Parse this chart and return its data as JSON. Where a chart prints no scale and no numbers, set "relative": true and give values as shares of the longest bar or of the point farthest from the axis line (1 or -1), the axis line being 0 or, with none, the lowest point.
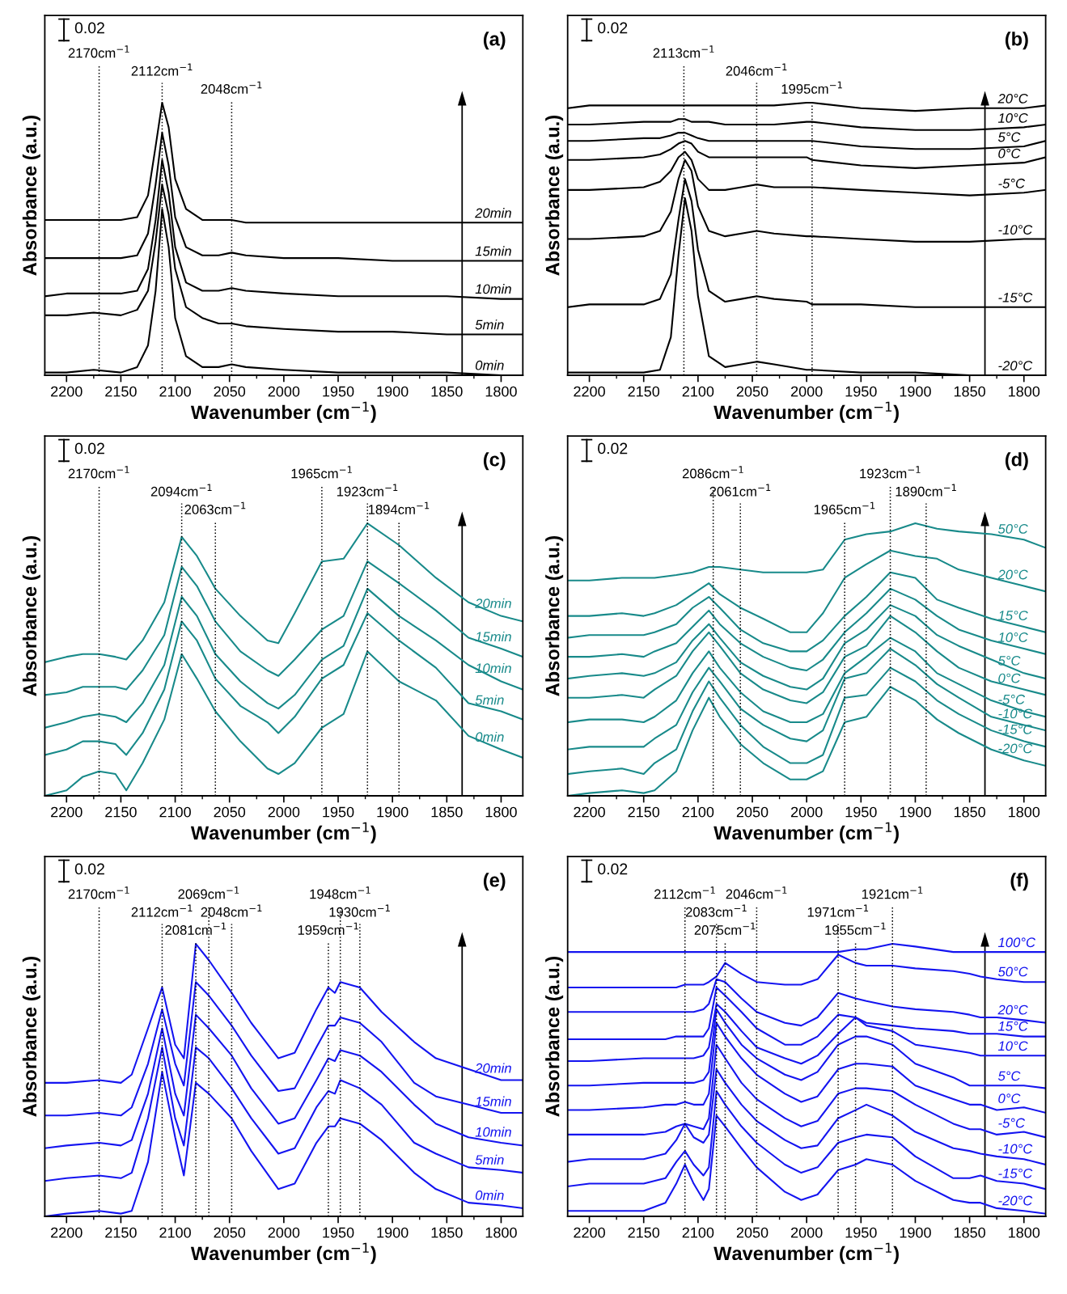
{
  "chart_data": [
    {
      "type": "line",
      "relative": true,
      "xlabel": "Wavenumber (cm$^{−1}$)",
      "ylabel": "Absorbance (a.u.)",
      "xlim": [
        2220,
        1780
      ],
      "xticks": [
        2200,
        2150,
        2100,
        2050,
        2000,
        1950,
        1900,
        1850,
        1800
      ],
      "annotations": [
        "(a)",
        "0.02"
      ],
      "x": [
        2220,
        2200,
        2175,
        2150,
        2135,
        2125,
        2118,
        2112,
        2106,
        2100,
        2090,
        2075,
        2060,
        2048,
        2035,
        2000,
        1950,
        1900,
        1850,
        1800,
        1780
      ],
      "series": [
        {
          "name": "0min",
          "color": "#000000",
          "values": [
            0.01,
            0.01,
            0.02,
            0.01,
            0.03,
            0.11,
            0.31,
            0.61,
            0.47,
            0.21,
            0.07,
            0.03,
            0.03,
            0.04,
            0.03,
            0.02,
            0.01,
            0.01,
            0.01,
            0.0,
            0.0
          ]
        },
        {
          "name": "5min",
          "color": "#000000",
          "values": [
            0.22,
            0.22,
            0.23,
            0.22,
            0.24,
            0.31,
            0.49,
            0.7,
            0.59,
            0.39,
            0.25,
            0.21,
            0.19,
            0.19,
            0.18,
            0.17,
            0.16,
            0.16,
            0.15,
            0.15,
            0.15
          ]
        },
        {
          "name": "10min",
          "color": "#000000",
          "values": [
            0.29,
            0.3,
            0.3,
            0.3,
            0.31,
            0.39,
            0.57,
            0.79,
            0.67,
            0.47,
            0.34,
            0.31,
            0.31,
            0.32,
            0.31,
            0.3,
            0.29,
            0.29,
            0.29,
            0.28,
            0.28
          ]
        },
        {
          "name": "15min",
          "color": "#000000",
          "values": [
            0.43,
            0.43,
            0.43,
            0.43,
            0.44,
            0.52,
            0.7,
            0.89,
            0.77,
            0.58,
            0.47,
            0.44,
            0.44,
            0.45,
            0.44,
            0.43,
            0.43,
            0.42,
            0.42,
            0.42,
            0.42
          ]
        },
        {
          "name": "20min",
          "color": "#000000",
          "values": [
            0.57,
            0.57,
            0.57,
            0.57,
            0.58,
            0.66,
            0.84,
            1.0,
            0.91,
            0.72,
            0.61,
            0.57,
            0.57,
            0.57,
            0.56,
            0.56,
            0.56,
            0.56,
            0.56,
            0.56,
            0.56
          ]
        }
      ],
      "ref_lines": [
        {
          "axis": "x",
          "value": 2170,
          "label": "2170cm$^{−1}$",
          "color": "#000000",
          "line_style": "dotted"
        },
        {
          "axis": "x",
          "value": 2112,
          "label": "2112cm$^{−1}$",
          "color": "#000000",
          "line_style": "dotted"
        },
        {
          "axis": "x",
          "value": 2048,
          "label": "2048cm$^{−1}$",
          "color": "#000000",
          "line_style": "dotted"
        }
      ]
    },
    {
      "type": "line",
      "relative": true,
      "xlabel": "Wavenumber (cm$^{−1}$)",
      "ylabel": "Absorbance (a.u.)",
      "xlim": [
        2220,
        1780
      ],
      "xticks": [
        2200,
        2150,
        2100,
        2050,
        2000,
        1950,
        1900,
        1850,
        1800
      ],
      "annotations": [
        "(b)",
        "0.02"
      ],
      "x": [
        2220,
        2200,
        2150,
        2135,
        2125,
        2118,
        2112,
        2106,
        2100,
        2090,
        2075,
        2060,
        2046,
        2030,
        2000,
        1995,
        1950,
        1900,
        1850,
        1800,
        1780
      ],
      "series": [
        {
          "name": "-20°C",
          "color": "#000000",
          "values": [
            0.01,
            0.01,
            0.01,
            0.02,
            0.14,
            0.44,
            0.65,
            0.53,
            0.29,
            0.07,
            0.03,
            0.04,
            0.05,
            0.04,
            0.02,
            0.02,
            0.01,
            0.01,
            0.0,
            0.0,
            0.0
          ]
        },
        {
          "name": "-15°C",
          "color": "#000000",
          "values": [
            0.25,
            0.26,
            0.26,
            0.28,
            0.37,
            0.57,
            0.72,
            0.64,
            0.46,
            0.31,
            0.27,
            0.28,
            0.29,
            0.28,
            0.27,
            0.26,
            0.26,
            0.25,
            0.25,
            0.25,
            0.25
          ]
        },
        {
          "name": "-10°C",
          "color": "#000000",
          "values": [
            0.5,
            0.5,
            0.51,
            0.53,
            0.6,
            0.72,
            0.79,
            0.75,
            0.62,
            0.53,
            0.51,
            0.52,
            0.53,
            0.52,
            0.51,
            0.51,
            0.5,
            0.49,
            0.49,
            0.5,
            0.5
          ]
        },
        {
          "name": "-5°C",
          "color": "#000000",
          "values": [
            0.68,
            0.68,
            0.69,
            0.71,
            0.75,
            0.8,
            0.82,
            0.79,
            0.72,
            0.68,
            0.68,
            0.69,
            0.7,
            0.69,
            0.69,
            0.69,
            0.68,
            0.67,
            0.66,
            0.67,
            0.68
          ]
        },
        {
          "name": "0°C",
          "color": "#000000",
          "values": [
            0.79,
            0.79,
            0.8,
            0.81,
            0.83,
            0.85,
            0.86,
            0.85,
            0.82,
            0.8,
            0.8,
            0.8,
            0.8,
            0.8,
            0.8,
            0.79,
            0.77,
            0.76,
            0.77,
            0.78,
            0.8
          ]
        },
        {
          "name": "5°C",
          "color": "#000000",
          "values": [
            0.86,
            0.86,
            0.87,
            0.87,
            0.88,
            0.89,
            0.89,
            0.88,
            0.87,
            0.86,
            0.86,
            0.86,
            0.86,
            0.86,
            0.86,
            0.86,
            0.84,
            0.83,
            0.83,
            0.84,
            0.86
          ]
        },
        {
          "name": "10°C",
          "color": "#000000",
          "values": [
            0.92,
            0.92,
            0.93,
            0.93,
            0.93,
            0.94,
            0.94,
            0.93,
            0.93,
            0.93,
            0.92,
            0.92,
            0.92,
            0.92,
            0.93,
            0.93,
            0.91,
            0.9,
            0.9,
            0.91,
            0.92
          ]
        },
        {
          "name": "20°C",
          "color": "#000000",
          "values": [
            0.98,
            0.99,
            0.99,
            0.99,
            0.99,
            0.99,
            0.99,
            0.99,
            0.99,
            0.99,
            0.99,
            0.99,
            0.99,
            0.99,
            1.0,
            1.0,
            0.98,
            0.97,
            0.98,
            0.98,
            0.99
          ]
        }
      ],
      "ref_lines": [
        {
          "axis": "x",
          "value": 2113,
          "label": "2113cm$^{−1}$",
          "color": "#000000",
          "line_style": "dotted"
        },
        {
          "axis": "x",
          "value": 2046,
          "label": "2046cm$^{−1}$",
          "color": "#000000",
          "line_style": "dotted"
        },
        {
          "axis": "x",
          "value": 1995,
          "label": "1995cm$^{−1}$",
          "color": "#000000",
          "line_style": "dotted"
        }
      ]
    },
    {
      "type": "line",
      "relative": true,
      "xlabel": "Wavenumber (cm$^{−1}$)",
      "ylabel": "Absorbance (a.u.)",
      "xlim": [
        2220,
        1780
      ],
      "xticks": [
        2200,
        2150,
        2100,
        2050,
        2000,
        1950,
        1900,
        1850,
        1800
      ],
      "annotations": [
        "(c)",
        "0.02"
      ],
      "x": [
        2220,
        2200,
        2185,
        2170,
        2155,
        2145,
        2130,
        2110,
        2094,
        2080,
        2063,
        2040,
        2015,
        2005,
        1990,
        1965,
        1945,
        1923,
        1894,
        1860,
        1830,
        1800,
        1780
      ],
      "series": [
        {
          "name": "0min",
          "color": "#188a8a",
          "values": [
            0.0,
            0.02,
            0.07,
            0.09,
            0.08,
            0.02,
            0.12,
            0.28,
            0.52,
            0.43,
            0.31,
            0.2,
            0.1,
            0.08,
            0.12,
            0.25,
            0.3,
            0.53,
            0.42,
            0.35,
            0.22,
            0.17,
            0.14
          ]
        },
        {
          "name": "5min",
          "color": "#188a8a",
          "values": [
            0.15,
            0.17,
            0.2,
            0.2,
            0.19,
            0.15,
            0.23,
            0.39,
            0.64,
            0.57,
            0.43,
            0.33,
            0.27,
            0.23,
            0.29,
            0.43,
            0.48,
            0.67,
            0.57,
            0.47,
            0.34,
            0.31,
            0.28
          ]
        },
        {
          "name": "10min",
          "color": "#188a8a",
          "values": [
            0.25,
            0.27,
            0.29,
            0.3,
            0.29,
            0.27,
            0.34,
            0.48,
            0.73,
            0.66,
            0.52,
            0.42,
            0.34,
            0.32,
            0.37,
            0.5,
            0.55,
            0.76,
            0.66,
            0.57,
            0.48,
            0.42,
            0.39
          ]
        },
        {
          "name": "15min",
          "color": "#188a8a",
          "values": [
            0.37,
            0.38,
            0.4,
            0.4,
            0.4,
            0.39,
            0.46,
            0.59,
            0.84,
            0.77,
            0.64,
            0.53,
            0.46,
            0.44,
            0.5,
            0.61,
            0.66,
            0.86,
            0.78,
            0.68,
            0.58,
            0.54,
            0.51
          ]
        },
        {
          "name": "20min",
          "color": "#188a8a",
          "values": [
            0.49,
            0.51,
            0.52,
            0.52,
            0.51,
            0.5,
            0.57,
            0.71,
            0.95,
            0.88,
            0.76,
            0.66,
            0.57,
            0.56,
            0.67,
            0.86,
            0.87,
            1.0,
            0.92,
            0.8,
            0.71,
            0.66,
            0.64
          ]
        }
      ],
      "ref_lines": [
        {
          "axis": "x",
          "value": 2170,
          "label": "2170cm$^{−1}$",
          "color": "#000000",
          "line_style": "dotted"
        },
        {
          "axis": "x",
          "value": 2094,
          "label": "2094cm$^{−1}$",
          "color": "#000000",
          "line_style": "dotted"
        },
        {
          "axis": "x",
          "value": 2063,
          "label": "2063cm$^{−1}$",
          "color": "#000000",
          "line_style": "dotted"
        },
        {
          "axis": "x",
          "value": 1965,
          "label": "1965cm$^{−1}$",
          "color": "#000000",
          "line_style": "dotted"
        },
        {
          "axis": "x",
          "value": 1923,
          "label": "1923cm$^{−1}$",
          "color": "#000000",
          "line_style": "dotted"
        },
        {
          "axis": "x",
          "value": 1894,
          "label": "1894cm$^{−1}$",
          "color": "#000000",
          "line_style": "dotted"
        }
      ]
    },
    {
      "type": "line",
      "relative": true,
      "xlabel": "Wavenumber (cm$^{−1}$)",
      "ylabel": "Absorbance (a.u.)",
      "xlim": [
        2220,
        1780
      ],
      "xticks": [
        2200,
        2150,
        2100,
        2050,
        2000,
        1950,
        1900,
        1850,
        1800
      ],
      "annotations": [
        "(d)",
        "0.02"
      ],
      "x": [
        2220,
        2200,
        2170,
        2150,
        2140,
        2120,
        2105,
        2090,
        2080,
        2061,
        2040,
        2015,
        2000,
        1985,
        1965,
        1945,
        1923,
        1900,
        1880,
        1860,
        1830,
        1800,
        1780
      ],
      "series": [
        {
          "name": "-20°C",
          "color": "#188a8a",
          "values": [
            0.0,
            0.01,
            0.02,
            0.01,
            0.02,
            0.09,
            0.24,
            0.36,
            0.29,
            0.19,
            0.12,
            0.06,
            0.06,
            0.09,
            0.27,
            0.29,
            0.4,
            0.35,
            0.28,
            0.23,
            0.17,
            0.13,
            0.11
          ]
        },
        {
          "name": "-15°C",
          "color": "#188a8a",
          "values": [
            0.08,
            0.09,
            0.1,
            0.08,
            0.12,
            0.17,
            0.31,
            0.42,
            0.36,
            0.26,
            0.18,
            0.12,
            0.12,
            0.15,
            0.36,
            0.37,
            0.47,
            0.42,
            0.35,
            0.3,
            0.24,
            0.2,
            0.18
          ]
        },
        {
          "name": "-10°C",
          "color": "#188a8a",
          "values": [
            0.17,
            0.18,
            0.18,
            0.18,
            0.21,
            0.26,
            0.38,
            0.47,
            0.42,
            0.32,
            0.26,
            0.21,
            0.2,
            0.24,
            0.43,
            0.45,
            0.54,
            0.48,
            0.41,
            0.36,
            0.29,
            0.26,
            0.24
          ]
        },
        {
          "name": "-5°C",
          "color": "#188a8a",
          "values": [
            0.27,
            0.28,
            0.28,
            0.27,
            0.29,
            0.35,
            0.45,
            0.53,
            0.47,
            0.38,
            0.31,
            0.27,
            0.27,
            0.3,
            0.45,
            0.51,
            0.58,
            0.53,
            0.45,
            0.41,
            0.35,
            0.31,
            0.29
          ]
        },
        {
          "name": "0°C",
          "color": "#188a8a",
          "values": [
            0.36,
            0.36,
            0.37,
            0.36,
            0.39,
            0.44,
            0.53,
            0.6,
            0.55,
            0.45,
            0.39,
            0.35,
            0.34,
            0.38,
            0.51,
            0.55,
            0.66,
            0.6,
            0.53,
            0.47,
            0.42,
            0.39,
            0.37
          ]
        },
        {
          "name": "5°C",
          "color": "#188a8a",
          "values": [
            0.43,
            0.44,
            0.45,
            0.44,
            0.45,
            0.49,
            0.57,
            0.63,
            0.58,
            0.49,
            0.44,
            0.4,
            0.39,
            0.43,
            0.56,
            0.61,
            0.7,
            0.66,
            0.59,
            0.55,
            0.5,
            0.45,
            0.43
          ]
        },
        {
          "name": "10°C",
          "color": "#188a8a",
          "values": [
            0.51,
            0.51,
            0.52,
            0.51,
            0.53,
            0.56,
            0.62,
            0.68,
            0.63,
            0.56,
            0.51,
            0.47,
            0.46,
            0.5,
            0.6,
            0.67,
            0.76,
            0.72,
            0.66,
            0.61,
            0.57,
            0.54,
            0.52
          ]
        },
        {
          "name": "15°C",
          "color": "#188a8a",
          "values": [
            0.58,
            0.59,
            0.59,
            0.59,
            0.6,
            0.63,
            0.69,
            0.73,
            0.69,
            0.61,
            0.56,
            0.53,
            0.53,
            0.57,
            0.66,
            0.73,
            0.82,
            0.8,
            0.72,
            0.69,
            0.65,
            0.62,
            0.6
          ]
        },
        {
          "name": "20°C",
          "color": "#188a8a",
          "values": [
            0.66,
            0.66,
            0.67,
            0.66,
            0.67,
            0.7,
            0.74,
            0.78,
            0.74,
            0.69,
            0.65,
            0.6,
            0.6,
            0.67,
            0.8,
            0.85,
            0.9,
            0.88,
            0.87,
            0.83,
            0.8,
            0.77,
            0.75
          ]
        },
        {
          "name": "50°C",
          "color": "#188a8a",
          "values": [
            0.79,
            0.79,
            0.8,
            0.8,
            0.8,
            0.81,
            0.82,
            0.84,
            0.84,
            0.83,
            0.82,
            0.82,
            0.82,
            0.83,
            0.94,
            0.96,
            0.97,
            1.0,
            0.98,
            0.97,
            0.96,
            0.94,
            0.91
          ]
        }
      ],
      "ref_lines": [
        {
          "axis": "x",
          "value": 2086,
          "label": "2086cm$^{−1}$",
          "color": "#000000",
          "line_style": "dotted"
        },
        {
          "axis": "x",
          "value": 2061,
          "label": "2061cm$^{−1}$",
          "color": "#000000",
          "line_style": "dotted"
        },
        {
          "axis": "x",
          "value": 1965,
          "label": "1965cm$^{−1}$",
          "color": "#000000",
          "line_style": "dotted"
        },
        {
          "axis": "x",
          "value": 1923,
          "label": "1923cm$^{−1}$",
          "color": "#000000",
          "line_style": "dotted"
        },
        {
          "axis": "x",
          "value": 1890,
          "label": "1890cm$^{−1}$",
          "color": "#000000",
          "line_style": "dotted"
        }
      ]
    },
    {
      "type": "line",
      "relative": true,
      "xlabel": "Wavenumber (cm$^{−1}$)",
      "ylabel": "Absorbance (a.u.)",
      "xlim": [
        2220,
        1780
      ],
      "xticks": [
        2200,
        2150,
        2100,
        2050,
        2000,
        1950,
        1900,
        1850,
        1800
      ],
      "annotations": [
        "(e)",
        "0.02"
      ],
      "x": [
        2220,
        2200,
        2170,
        2150,
        2140,
        2125,
        2112,
        2100,
        2092,
        2081,
        2069,
        2048,
        2030,
        2005,
        1990,
        1970,
        1959,
        1953,
        1948,
        1930,
        1910,
        1880,
        1860,
        1830,
        1800,
        1780
      ],
      "series": [
        {
          "name": "0min",
          "color": "#1414f0",
          "values": [
            0.0,
            0.01,
            0.02,
            0.01,
            0.02,
            0.2,
            0.53,
            0.29,
            0.15,
            0.49,
            0.45,
            0.36,
            0.24,
            0.1,
            0.12,
            0.27,
            0.33,
            0.33,
            0.36,
            0.34,
            0.28,
            0.16,
            0.1,
            0.05,
            0.04,
            0.03
          ]
        },
        {
          "name": "5min",
          "color": "#1414f0",
          "values": [
            0.13,
            0.14,
            0.15,
            0.14,
            0.16,
            0.36,
            0.62,
            0.36,
            0.26,
            0.62,
            0.58,
            0.47,
            0.36,
            0.23,
            0.25,
            0.4,
            0.46,
            0.45,
            0.5,
            0.47,
            0.41,
            0.27,
            0.23,
            0.18,
            0.17,
            0.16
          ]
        },
        {
          "name": "10min",
          "color": "#1414f0",
          "values": [
            0.25,
            0.26,
            0.27,
            0.26,
            0.28,
            0.45,
            0.69,
            0.45,
            0.37,
            0.74,
            0.69,
            0.59,
            0.47,
            0.34,
            0.36,
            0.5,
            0.58,
            0.57,
            0.61,
            0.59,
            0.53,
            0.41,
            0.34,
            0.29,
            0.27,
            0.26
          ]
        },
        {
          "name": "15min",
          "color": "#1414f0",
          "values": [
            0.37,
            0.37,
            0.38,
            0.37,
            0.4,
            0.56,
            0.76,
            0.56,
            0.48,
            0.86,
            0.81,
            0.7,
            0.59,
            0.46,
            0.47,
            0.62,
            0.7,
            0.7,
            0.73,
            0.71,
            0.64,
            0.49,
            0.44,
            0.41,
            0.38,
            0.38
          ]
        },
        {
          "name": "20min",
          "color": "#1414f0",
          "values": [
            0.49,
            0.49,
            0.5,
            0.49,
            0.52,
            0.69,
            0.84,
            0.63,
            0.58,
            1.0,
            0.94,
            0.82,
            0.71,
            0.58,
            0.6,
            0.76,
            0.84,
            0.82,
            0.86,
            0.84,
            0.75,
            0.64,
            0.58,
            0.54,
            0.5,
            0.5
          ]
        }
      ],
      "ref_lines": [
        {
          "axis": "x",
          "value": 2170,
          "label": "2170cm$^{−1}$",
          "color": "#000000",
          "line_style": "dotted"
        },
        {
          "axis": "x",
          "value": 2112,
          "label": "2112cm$^{−1}$",
          "color": "#000000",
          "line_style": "dotted"
        },
        {
          "axis": "x",
          "value": 2081,
          "label": "2081cm$^{−1}$",
          "color": "#000000",
          "line_style": "dotted"
        },
        {
          "axis": "x",
          "value": 2069,
          "label": "2069cm$^{−1}$",
          "color": "#000000",
          "line_style": "dotted"
        },
        {
          "axis": "x",
          "value": 2048,
          "label": "2048cm$^{−1}$",
          "color": "#000000",
          "line_style": "dotted"
        },
        {
          "axis": "x",
          "value": 1959,
          "label": "1959cm$^{−1}$",
          "color": "#000000",
          "line_style": "dotted"
        },
        {
          "axis": "x",
          "value": 1948,
          "label": "1948cm$^{−1}$",
          "color": "#000000",
          "line_style": "dotted"
        },
        {
          "axis": "x",
          "value": 1930,
          "label": "1930cm$^{−1}$",
          "color": "#000000",
          "line_style": "dotted"
        }
      ]
    },
    {
      "type": "line",
      "relative": true,
      "xlabel": "Wavenumber (cm$^{−1}$)",
      "ylabel": "Absorbance (a.u.)",
      "xlim": [
        2220,
        1780
      ],
      "xticks": [
        2200,
        2150,
        2100,
        2050,
        2000,
        1950,
        1900,
        1850,
        1800
      ],
      "annotations": [
        "(f)",
        "0.02"
      ],
      "x": [
        2220,
        2200,
        2150,
        2130,
        2120,
        2112,
        2104,
        2095,
        2090,
        2083,
        2075,
        2060,
        2046,
        2020,
        2005,
        1990,
        1971,
        1955,
        1945,
        1921,
        1900,
        1865,
        1850,
        1840,
        1825,
        1800,
        1780
      ],
      "series": [
        {
          "name": "-20°C",
          "color": "#1414f0",
          "values": [
            0.02,
            0.02,
            0.02,
            0.05,
            0.12,
            0.19,
            0.12,
            0.06,
            0.1,
            0.37,
            0.33,
            0.25,
            0.18,
            0.09,
            0.06,
            0.08,
            0.17,
            0.19,
            0.21,
            0.19,
            0.13,
            0.06,
            0.05,
            0.05,
            0.03,
            0.02,
            0.01
          ]
        },
        {
          "name": "-15°C",
          "color": "#1414f0",
          "values": [
            0.11,
            0.12,
            0.12,
            0.14,
            0.2,
            0.24,
            0.19,
            0.15,
            0.18,
            0.46,
            0.41,
            0.33,
            0.27,
            0.19,
            0.16,
            0.18,
            0.27,
            0.29,
            0.3,
            0.29,
            0.22,
            0.14,
            0.14,
            0.15,
            0.13,
            0.12,
            0.1
          ]
        },
        {
          "name": "-10°C",
          "color": "#1414f0",
          "values": [
            0.2,
            0.21,
            0.21,
            0.23,
            0.28,
            0.34,
            0.29,
            0.27,
            0.3,
            0.54,
            0.49,
            0.41,
            0.35,
            0.28,
            0.25,
            0.26,
            0.36,
            0.39,
            0.41,
            0.37,
            0.31,
            0.25,
            0.24,
            0.23,
            0.22,
            0.21,
            0.19
          ]
        },
        {
          "name": "-5°C",
          "color": "#1414f0",
          "values": [
            0.3,
            0.3,
            0.3,
            0.31,
            0.33,
            0.34,
            0.33,
            0.32,
            0.36,
            0.63,
            0.58,
            0.49,
            0.43,
            0.36,
            0.33,
            0.35,
            0.45,
            0.47,
            0.47,
            0.46,
            0.41,
            0.34,
            0.32,
            0.32,
            0.3,
            0.31,
            0.29
          ]
        },
        {
          "name": "0°C",
          "color": "#1414f0",
          "values": [
            0.39,
            0.39,
            0.4,
            0.41,
            0.41,
            0.42,
            0.41,
            0.41,
            0.45,
            0.71,
            0.66,
            0.58,
            0.52,
            0.45,
            0.42,
            0.44,
            0.54,
            0.56,
            0.56,
            0.55,
            0.48,
            0.43,
            0.41,
            0.41,
            0.39,
            0.4,
            0.38
          ]
        },
        {
          "name": "5°C",
          "color": "#1414f0",
          "values": [
            0.48,
            0.48,
            0.49,
            0.49,
            0.49,
            0.49,
            0.49,
            0.5,
            0.53,
            0.76,
            0.71,
            0.63,
            0.58,
            0.52,
            0.5,
            0.53,
            0.63,
            0.66,
            0.66,
            0.63,
            0.56,
            0.51,
            0.48,
            0.48,
            0.48,
            0.48,
            0.47
          ]
        },
        {
          "name": "10°C",
          "color": "#1414f0",
          "values": [
            0.57,
            0.57,
            0.58,
            0.58,
            0.58,
            0.58,
            0.58,
            0.59,
            0.62,
            0.78,
            0.75,
            0.68,
            0.62,
            0.58,
            0.56,
            0.59,
            0.67,
            0.73,
            0.7,
            0.68,
            0.63,
            0.61,
            0.6,
            0.59,
            0.59,
            0.59,
            0.59
          ]
        },
        {
          "name": "15°C",
          "color": "#1414f0",
          "values": [
            0.65,
            0.65,
            0.65,
            0.65,
            0.66,
            0.66,
            0.66,
            0.66,
            0.69,
            0.84,
            0.81,
            0.75,
            0.69,
            0.63,
            0.63,
            0.66,
            0.74,
            0.73,
            0.71,
            0.7,
            0.69,
            0.68,
            0.67,
            0.67,
            0.67,
            0.66,
            0.66
          ]
        },
        {
          "name": "20°C",
          "color": "#1414f0",
          "values": [
            0.75,
            0.75,
            0.75,
            0.75,
            0.75,
            0.75,
            0.75,
            0.76,
            0.78,
            0.87,
            0.86,
            0.8,
            0.75,
            0.71,
            0.7,
            0.73,
            0.82,
            0.8,
            0.79,
            0.77,
            0.76,
            0.75,
            0.74,
            0.73,
            0.73,
            0.72,
            0.71
          ]
        },
        {
          "name": "50°C",
          "color": "#1414f0",
          "values": [
            0.84,
            0.84,
            0.84,
            0.84,
            0.84,
            0.85,
            0.85,
            0.85,
            0.86,
            0.88,
            0.93,
            0.89,
            0.86,
            0.85,
            0.85,
            0.87,
            0.96,
            0.93,
            0.92,
            0.92,
            0.91,
            0.9,
            0.89,
            0.88,
            0.87,
            0.86,
            0.86
          ]
        },
        {
          "name": "100°C",
          "color": "#1414f0",
          "values": [
            0.97,
            0.97,
            0.97,
            0.97,
            0.97,
            0.97,
            0.97,
            0.97,
            0.97,
            0.97,
            0.97,
            0.97,
            0.97,
            0.97,
            0.97,
            0.97,
            0.97,
            0.98,
            0.98,
            1.0,
            0.99,
            0.97,
            0.97,
            0.97,
            0.97,
            0.97,
            0.97
          ]
        }
      ],
      "ref_lines": [
        {
          "axis": "x",
          "value": 2112,
          "label": "2112cm$^{−1}$",
          "color": "#000000",
          "line_style": "dotted"
        },
        {
          "axis": "x",
          "value": 2083,
          "label": "2083cm$^{−1}$",
          "color": "#000000",
          "line_style": "dotted"
        },
        {
          "axis": "x",
          "value": 2075,
          "label": "2075cm$^{−1}$",
          "color": "#000000",
          "line_style": "dotted"
        },
        {
          "axis": "x",
          "value": 2046,
          "label": "2046cm$^{−1}$",
          "color": "#000000",
          "line_style": "dotted"
        },
        {
          "axis": "x",
          "value": 1971,
          "label": "1971cm$^{−1}$",
          "color": "#000000",
          "line_style": "dotted"
        },
        {
          "axis": "x",
          "value": 1955,
          "label": "1955cm$^{−1}$",
          "color": "#000000",
          "line_style": "dotted"
        },
        {
          "axis": "x",
          "value": 1921,
          "label": "1921cm$^{−1}$",
          "color": "#000000",
          "line_style": "dotted"
        }
      ]
    }
  ]
}
